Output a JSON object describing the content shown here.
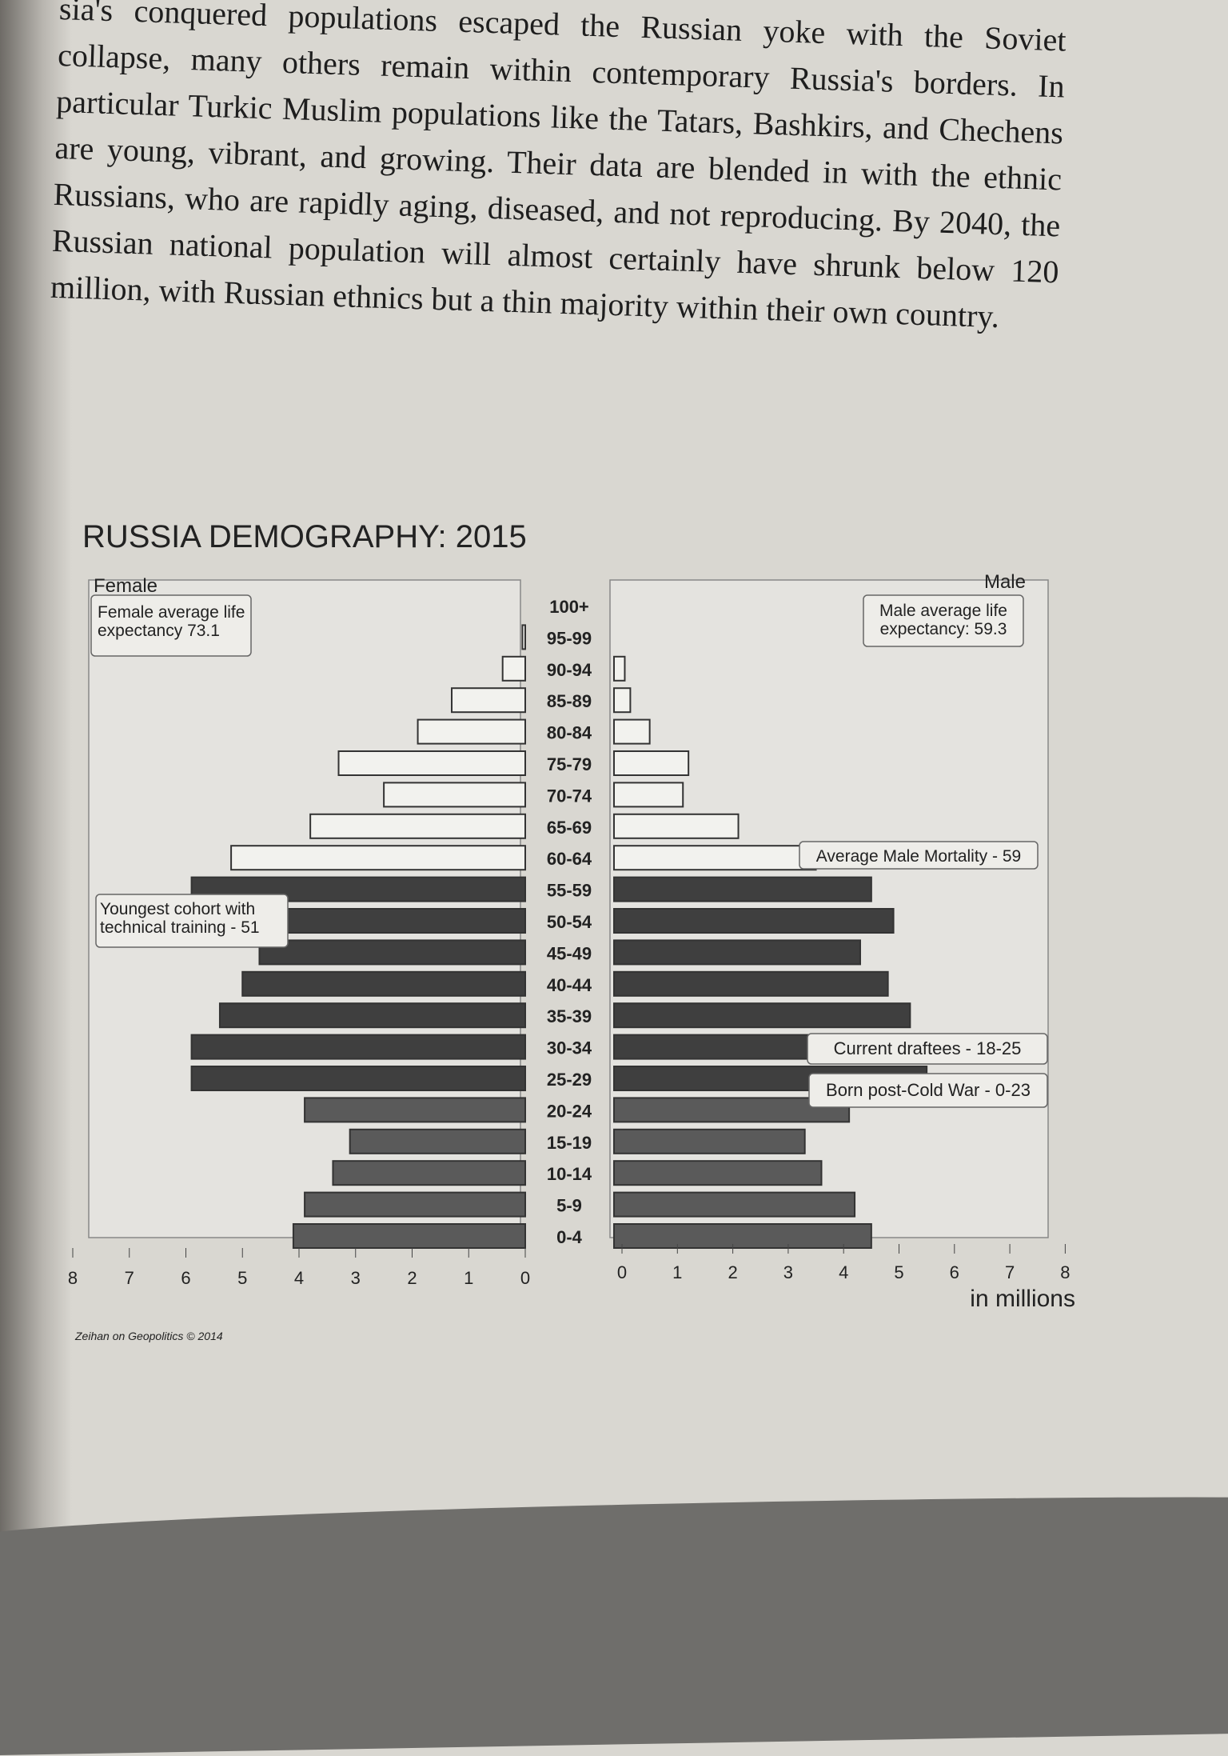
{
  "prose": "sia's conquered populations escaped the Russian yoke with the Soviet collapse, many others remain within contemporary Russia's borders. In particular Turkic Muslim populations like the Tatars, Bashkirs, and Chechens are young, vibrant, and growing. Their data are blended in with the ethnic Russians, who are rapidly aging, diseased, and not reproducing. By 2040, the Russian national population will almost certainly have shrunk below 120 million, with Russian ethnics but a thin majority within their own country.",
  "chart_data": {
    "type": "bar",
    "title": "RUSSIA DEMOGRAPHY: 2015",
    "subtype": "population-pyramid",
    "xlabel": "in millions",
    "xlim": [
      0,
      8
    ],
    "xticks": [
      "0",
      "1",
      "2",
      "3",
      "4",
      "5",
      "6",
      "7",
      "8"
    ],
    "categories": [
      "100+",
      "95-99",
      "90-94",
      "85-89",
      "80-84",
      "75-79",
      "70-74",
      "65-69",
      "60-64",
      "55-59",
      "50-54",
      "45-49",
      "40-44",
      "35-39",
      "30-34",
      "25-29",
      "20-24",
      "15-19",
      "10-14",
      "5-9",
      "0-4"
    ],
    "series": [
      {
        "name": "Female",
        "values": [
          0.0,
          0.05,
          0.4,
          1.3,
          1.9,
          3.3,
          2.5,
          3.8,
          5.2,
          5.9,
          6.0,
          4.7,
          5.0,
          5.4,
          5.9,
          5.9,
          3.9,
          3.1,
          3.4,
          3.9,
          4.1
        ]
      },
      {
        "name": "Male",
        "values": [
          0.0,
          0.0,
          0.05,
          0.15,
          0.5,
          1.2,
          1.1,
          2.1,
          3.5,
          4.5,
          4.9,
          4.3,
          4.8,
          5.2,
          5.9,
          5.5,
          4.1,
          3.3,
          3.6,
          4.2,
          4.5
        ]
      }
    ],
    "annotations": {
      "female_life": "Female average life expectancy 73.1",
      "male_life": "Male average life expectancy: 59.3",
      "male_mortality": "Average Male Mortality - 59",
      "technical": "Youngest cohort with technical training - 51",
      "draftees": "Current draftees - 18-25",
      "post_cold_war": "Born post-Cold War - 0-23"
    },
    "source": "Zeihan on Geopolitics © 2014",
    "colors": {
      "old": "#f2f2ee",
      "working": "#3f3f3f",
      "young": "#5a5a5a"
    }
  }
}
